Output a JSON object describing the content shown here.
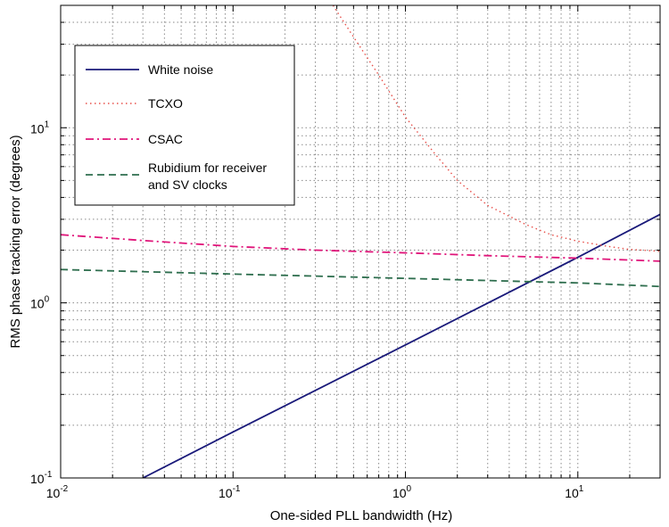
{
  "chart_data": {
    "type": "line",
    "xscale": "log",
    "yscale": "log",
    "xlim": [
      0.01,
      30
    ],
    "ylim": [
      0.1,
      50
    ],
    "xlabel": "One-sided PLL bandwidth (Hz)",
    "ylabel": "RMS phase tracking error (degrees)",
    "grid": true,
    "legend_position": "top-left",
    "x_ticks": [
      {
        "base": "10",
        "exp": "-2",
        "value": 0.01
      },
      {
        "base": "10",
        "exp": "-1",
        "value": 0.1
      },
      {
        "base": "10",
        "exp": "0",
        "value": 1
      },
      {
        "base": "10",
        "exp": "1",
        "value": 10
      }
    ],
    "y_ticks": [
      {
        "base": "10",
        "exp": "-1",
        "value": 0.1
      },
      {
        "base": "10",
        "exp": "0",
        "value": 1
      },
      {
        "base": "10",
        "exp": "1",
        "value": 10
      }
    ],
    "series": [
      {
        "name": "White noise",
        "color": "#1a1a7a",
        "style": "solid",
        "points": [
          [
            0.03,
            0.1
          ],
          [
            0.1,
            0.183
          ],
          [
            1,
            0.575
          ],
          [
            10,
            1.82
          ],
          [
            30,
            3.2
          ]
        ]
      },
      {
        "name": "TCXO",
        "color": "#e8504a",
        "style": "dotted",
        "points": [
          [
            0.38,
            50
          ],
          [
            0.5,
            33
          ],
          [
            0.7,
            20
          ],
          [
            1,
            11.5
          ],
          [
            1.5,
            7
          ],
          [
            2,
            5
          ],
          [
            3,
            3.6
          ],
          [
            5,
            2.8
          ],
          [
            7,
            2.45
          ],
          [
            10,
            2.25
          ],
          [
            15,
            2.1
          ],
          [
            20,
            2.02
          ],
          [
            30,
            1.97
          ]
        ]
      },
      {
        "name": "CSAC",
        "color": "#e0157a",
        "style": "dashdot",
        "points": [
          [
            0.01,
            2.45
          ],
          [
            0.03,
            2.27
          ],
          [
            0.1,
            2.1
          ],
          [
            0.3,
            2.0
          ],
          [
            1,
            1.93
          ],
          [
            3,
            1.86
          ],
          [
            10,
            1.8
          ],
          [
            30,
            1.73
          ]
        ]
      },
      {
        "name": "Rubidium for receiver and SV clocks",
        "legend_lines": [
          "Rubidium for receiver",
          "and SV clocks"
        ],
        "color": "#2e6e4e",
        "style": "dashed",
        "points": [
          [
            0.01,
            1.55
          ],
          [
            0.1,
            1.46
          ],
          [
            1,
            1.38
          ],
          [
            10,
            1.3
          ],
          [
            30,
            1.24
          ]
        ]
      }
    ]
  }
}
